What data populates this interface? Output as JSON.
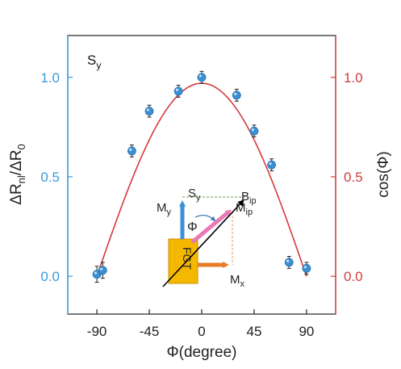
{
  "chart_data": {
    "type": "scatter",
    "panel_label": "S",
    "panel_label_sub": "y",
    "xlabel": "Φ(degree)",
    "ylabel_left": "ΔR",
    "ylabel_left_sub1": "nl",
    "ylabel_left_mid": "/ΔR",
    "ylabel_left_sub2": "0",
    "ylabel_right": "cos(Φ)",
    "xlim": [
      -115,
      115
    ],
    "ylim": [
      -0.19,
      1.21
    ],
    "x_ticks": [
      -90,
      -45,
      0,
      45,
      90
    ],
    "x_tick_labels": [
      "-90",
      "-45",
      "0",
      "45",
      "90"
    ],
    "y_ticks_left": [
      0.0,
      0.5,
      1.0
    ],
    "y_tick_labels_left": [
      "0.0",
      "0.5",
      "1.0"
    ],
    "y_ticks_right": [
      0.0,
      0.5,
      1.0
    ],
    "y_tick_labels_right": [
      "0.0",
      "0.5",
      "1.0"
    ],
    "colors": {
      "left_axis": "#3a9ad9",
      "right_axis": "#d43b3b",
      "curve": "#d43b3b",
      "points": "#3b8fd4",
      "errorbars": "#222222",
      "frame": "#222222"
    },
    "series": [
      {
        "x": [
          -90,
          -85,
          -60,
          -45,
          -20,
          0,
          30,
          45,
          60,
          75,
          90
        ],
        "y": [
          0.01,
          0.03,
          0.63,
          0.83,
          0.93,
          1.0,
          0.91,
          0.73,
          0.56,
          0.07,
          0.04
        ],
        "yerr": [
          0.04,
          0.04,
          0.03,
          0.03,
          0.03,
          0.03,
          0.03,
          0.03,
          0.03,
          0.03,
          0.03
        ]
      }
    ],
    "fit_curve": {
      "type": "cos",
      "amplitude": 0.97,
      "x_range": [
        -90,
        90
      ]
    },
    "inset": {
      "block_label": "FGT",
      "labels": {
        "my": "M",
        "my_sub": "y",
        "mx": "M",
        "mx_sub": "x",
        "mip": "M",
        "mip_sub": "ip",
        "bip": "B",
        "bip_sub": "ip",
        "sy": "S",
        "sy_sub": "y",
        "phi": "Φ"
      },
      "colors": {
        "block": "#f5b800",
        "my_arrow": "#3a8fd8",
        "mx_arrow": "#e87b25",
        "mip_arrow": "#e978b6",
        "bip_arrow": "#000000",
        "guides": "#6a9b4f"
      }
    }
  }
}
